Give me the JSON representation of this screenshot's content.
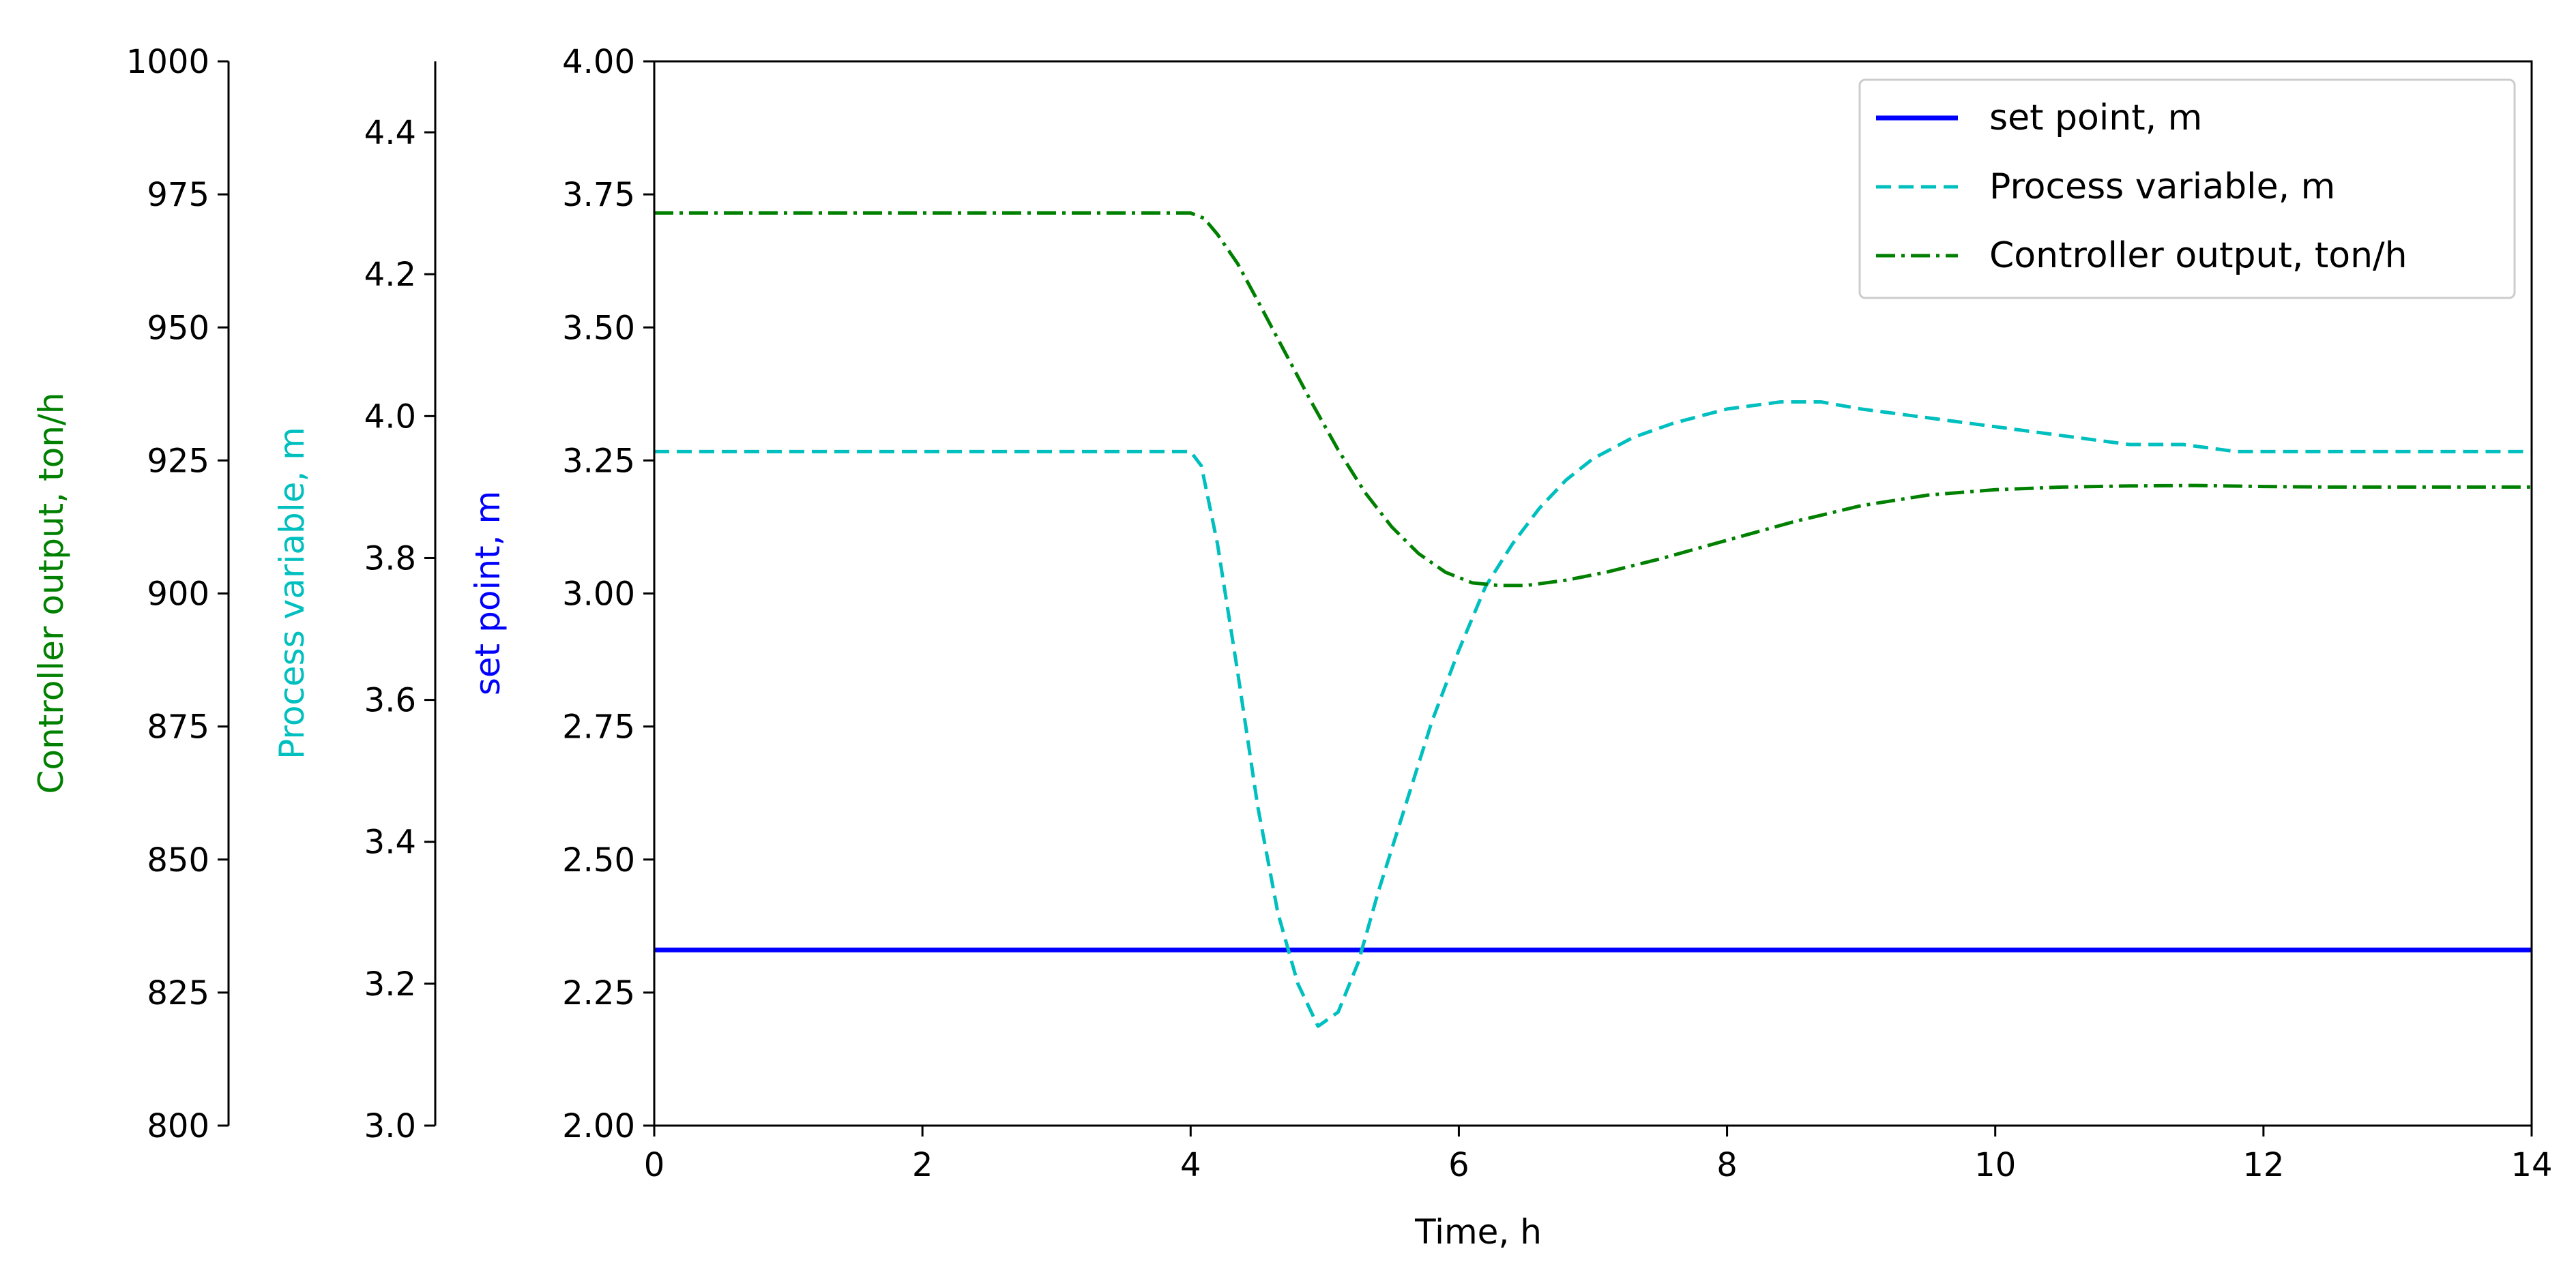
{
  "chart_data": {
    "type": "line",
    "xlabel": "Time, h",
    "xlim": [
      0,
      14
    ],
    "x_ticks": [
      "0",
      "2",
      "4",
      "6",
      "8",
      "10",
      "12",
      "14"
    ],
    "axes": {
      "set_point": {
        "label": "set point, m",
        "color": "#0000ff",
        "ylim": [
          2.0,
          4.0
        ],
        "ticks": [
          "2.00",
          "2.25",
          "2.50",
          "2.75",
          "3.00",
          "3.25",
          "3.50",
          "3.75",
          "4.00"
        ]
      },
      "process_variable": {
        "label": "Process variable, m",
        "color": "#00bfbf",
        "ylim": [
          3.0,
          4.5
        ],
        "ticks": [
          "3.0",
          "3.2",
          "3.4",
          "3.6",
          "3.8",
          "4.0",
          "4.2",
          "4.4"
        ]
      },
      "controller_output": {
        "label": "Controller output, ton/h",
        "color": "#008000",
        "ylim": [
          800,
          1000
        ],
        "ticks": [
          "800",
          "825",
          "850",
          "875",
          "900",
          "925",
          "950",
          "975",
          "1000"
        ]
      }
    },
    "legend_position": "top-right",
    "series": [
      {
        "name": "set point, m",
        "axis": "set_point",
        "style": "solid",
        "color": "#0000ff",
        "x": [
          0,
          14
        ],
        "y": [
          2.33,
          2.33
        ]
      },
      {
        "name": "Process variable, m",
        "axis": "process_variable",
        "style": "dashed",
        "color": "#00bfbf",
        "x": [
          0,
          4.0,
          4.08,
          4.2,
          4.35,
          4.5,
          4.65,
          4.8,
          4.95,
          5.1,
          5.25,
          5.4,
          5.6,
          5.8,
          6.0,
          6.2,
          6.4,
          6.6,
          6.8,
          7.0,
          7.3,
          7.6,
          8.0,
          8.4,
          8.7,
          9.0,
          9.4,
          9.8,
          10.2,
          10.6,
          11.0,
          11.4,
          11.8,
          12.2,
          12.6,
          13.0,
          13.5,
          14.0
        ],
        "y": [
          3.95,
          3.95,
          3.93,
          3.82,
          3.64,
          3.45,
          3.3,
          3.2,
          3.14,
          3.16,
          3.23,
          3.33,
          3.45,
          3.57,
          3.67,
          3.76,
          3.82,
          3.87,
          3.91,
          3.94,
          3.97,
          3.99,
          4.01,
          4.02,
          4.02,
          4.01,
          4.0,
          3.99,
          3.98,
          3.97,
          3.96,
          3.96,
          3.95,
          3.95,
          3.95,
          3.95,
          3.95,
          3.95
        ]
      },
      {
        "name": "Controller output, ton/h",
        "axis": "controller_output",
        "style": "dashdot",
        "color": "#008000",
        "x": [
          0,
          4.0,
          4.1,
          4.2,
          4.35,
          4.5,
          4.7,
          4.9,
          5.1,
          5.3,
          5.5,
          5.7,
          5.9,
          6.1,
          6.3,
          6.5,
          6.8,
          7.1,
          7.5,
          8.0,
          8.5,
          9.0,
          9.5,
          10.0,
          10.5,
          11.0,
          11.5,
          12.0,
          12.5,
          13.0,
          14.0
        ],
        "y": [
          971.5,
          971.5,
          970.5,
          967.5,
          962,
          955,
          945.5,
          936,
          927,
          919,
          912.5,
          907.5,
          904,
          902,
          901.5,
          901.5,
          902.5,
          904,
          906.5,
          910,
          913.5,
          916.5,
          918.5,
          919.5,
          920,
          920.2,
          920.3,
          920.1,
          920,
          920,
          920
        ]
      }
    ]
  }
}
